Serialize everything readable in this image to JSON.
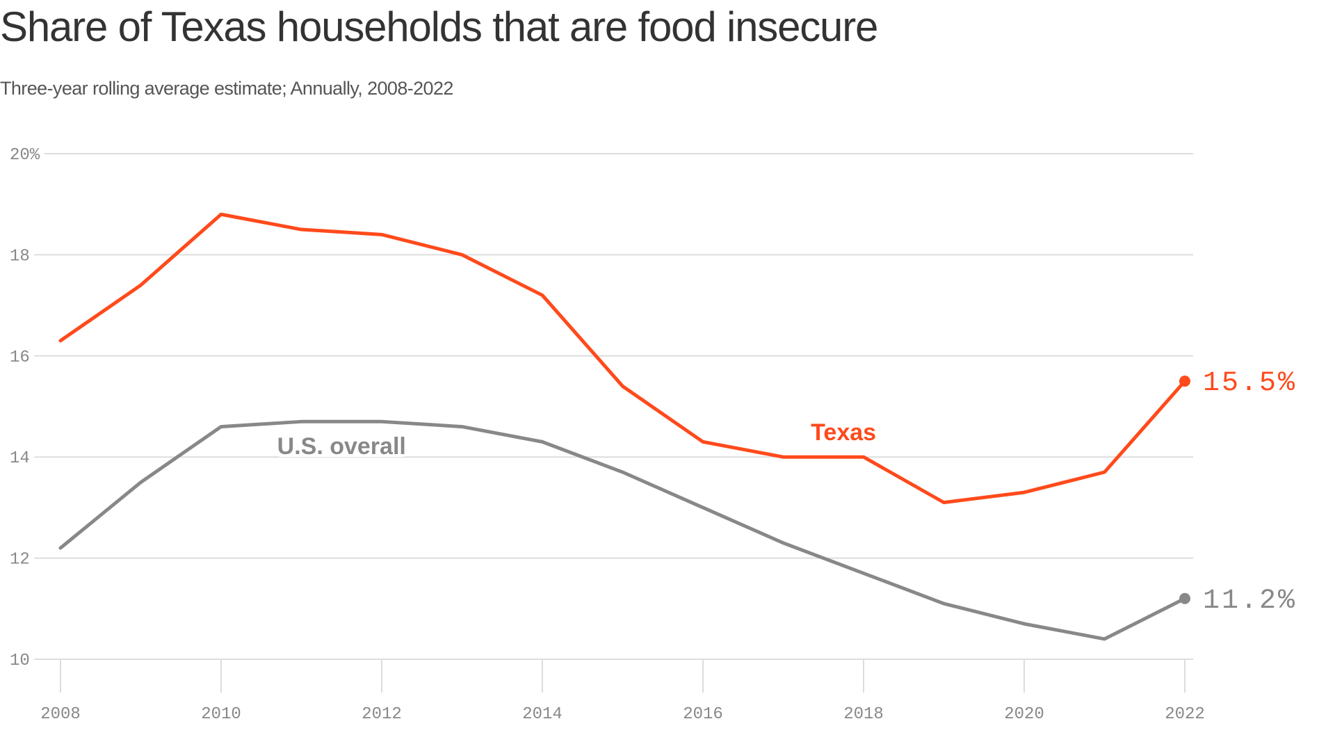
{
  "header": {
    "title": "Share of Texas households that are food insecure",
    "subtitle": "Three-year rolling average estimate; Annually, 2008-2022"
  },
  "chart_data": {
    "type": "line",
    "title": "Share of Texas households that are food insecure",
    "subtitle": "Three-year rolling average estimate; Annually, 2008-2022",
    "xlabel": "",
    "ylabel": "",
    "x": [
      2008,
      2009,
      2010,
      2011,
      2012,
      2013,
      2014,
      2015,
      2016,
      2017,
      2018,
      2019,
      2020,
      2021,
      2022
    ],
    "xlim": [
      2008,
      2022
    ],
    "ylim": [
      10,
      20
    ],
    "x_ticks": [
      "2008",
      "2010",
      "2012",
      "2014",
      "2016",
      "2018",
      "2020",
      "2022"
    ],
    "x_tick_values": [
      2008,
      2010,
      2012,
      2014,
      2016,
      2018,
      2020,
      2022
    ],
    "y_ticks": [
      "10",
      "12",
      "14",
      "16",
      "18",
      "20%"
    ],
    "y_tick_values": [
      10,
      12,
      14,
      16,
      18,
      20
    ],
    "grid": true,
    "legend": "inline labels",
    "series": [
      {
        "name": "Texas",
        "label": "Texas",
        "color": "#ff4a1c",
        "values": [
          16.3,
          17.4,
          18.8,
          18.5,
          18.4,
          18.0,
          17.2,
          15.4,
          14.3,
          14.0,
          14.0,
          13.1,
          13.3,
          13.7,
          15.5
        ],
        "end_label": "15.5%"
      },
      {
        "name": "U.S. overall",
        "label": "U.S. overall",
        "color": "#888888",
        "values": [
          12.2,
          13.5,
          14.6,
          14.7,
          14.7,
          14.6,
          14.3,
          13.7,
          13.0,
          12.3,
          11.7,
          11.1,
          10.7,
          10.4,
          11.2
        ],
        "end_label": "11.2%"
      }
    ]
  }
}
